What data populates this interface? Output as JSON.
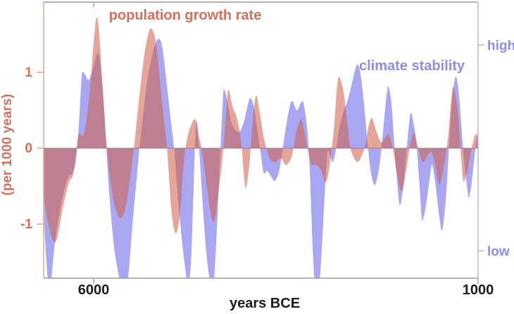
{
  "chart_data": {
    "type": "area",
    "title": "",
    "xlabel": "years BCE",
    "ylabel": "(per 1000 years)",
    "legend_position": "annotated-inline",
    "grid": false,
    "x_domain": [
      6650,
      1000
    ],
    "y_domain": [
      -1.93,
      1.93
    ],
    "x_axis_direction": "years BCE decreasing to the right",
    "x_ticks": [
      {
        "label": "6000",
        "year": 6000
      },
      {
        "label": "1000",
        "year": 1000
      }
    ],
    "y_ticks_left": [
      {
        "label": "1",
        "value": 1
      },
      {
        "label": "0",
        "value": 0
      },
      {
        "label": "-1",
        "value": -1
      }
    ],
    "y_ticks_right": [
      {
        "label": "high",
        "value": 1.36
      },
      {
        "label": "low",
        "value": -1.35
      }
    ],
    "colors": {
      "population_fill": "#d0614a",
      "population_text": "#d4715c",
      "climate_fill": "#6f6ce8",
      "climate_text": "#8f8cef",
      "axis_gray": "#9b9b9b",
      "zero_line": "#b5b5b5",
      "left_spine": "#e4ab9d",
      "right_spine": "#b9b7f3",
      "tick_text_dark": "#1c1c1c"
    },
    "series": [
      {
        "id": "climate",
        "name": "climate stability",
        "color": "#6f6ce8",
        "fill_opacity": 0.6,
        "points": [
          [
            6650,
            -0.85
          ],
          [
            6620,
            -1.4
          ],
          [
            6590,
            -1.78
          ],
          [
            6555,
            -1.75
          ],
          [
            6510,
            -1.3
          ],
          [
            6460,
            -0.95
          ],
          [
            6394,
            -0.6
          ],
          [
            6330,
            -0.38
          ],
          [
            6275,
            -0.33
          ],
          [
            6229,
            -0.15
          ],
          [
            6193,
            0.3
          ],
          [
            6165,
            0.8
          ],
          [
            6147,
            1
          ],
          [
            6110,
            0.97
          ],
          [
            6064,
            0.9
          ],
          [
            6009,
            1.05
          ],
          [
            5963,
            1.22
          ],
          [
            5936,
            1.24
          ],
          [
            5899,
            1
          ],
          [
            5862,
            0.5
          ],
          [
            5835,
            0
          ],
          [
            5789,
            -0.7
          ],
          [
            5734,
            -1.3
          ],
          [
            5679,
            -1.65
          ],
          [
            5642,
            -1.85
          ],
          [
            5587,
            -1.9
          ],
          [
            5541,
            -1.6
          ],
          [
            5495,
            -1
          ],
          [
            5440,
            -0.4
          ],
          [
            5404,
            0
          ],
          [
            5349,
            0.5
          ],
          [
            5294,
            0.95
          ],
          [
            5220,
            1.3
          ],
          [
            5165,
            1.44
          ],
          [
            5110,
            1.35
          ],
          [
            5055,
            0.9
          ],
          [
            5000,
            0.4
          ],
          [
            4954,
            0
          ],
          [
            4908,
            -0.6
          ],
          [
            4853,
            -1.2
          ],
          [
            4807,
            -1.6
          ],
          [
            4771,
            -1.8
          ],
          [
            4734,
            -1.5
          ],
          [
            4706,
            -0.7
          ],
          [
            4679,
            0.1
          ],
          [
            4660,
            0.35
          ],
          [
            4642,
            0.2
          ],
          [
            4615,
            -0.2
          ],
          [
            4578,
            -0.8
          ],
          [
            4532,
            -1.4
          ],
          [
            4486,
            -1.75
          ],
          [
            4440,
            -1.8
          ],
          [
            4404,
            -1.2
          ],
          [
            4367,
            -0.4
          ],
          [
            4349,
            0
          ],
          [
            4321,
            0.6
          ],
          [
            4303,
            0.78
          ],
          [
            4257,
            0.6
          ],
          [
            4211,
            0.35
          ],
          [
            4156,
            0.24
          ],
          [
            4101,
            0.22
          ],
          [
            4046,
            0.35
          ],
          [
            4000,
            0.55
          ],
          [
            3963,
            0.66
          ],
          [
            3917,
            0.55
          ],
          [
            3872,
            0.25
          ],
          [
            3835,
            0
          ],
          [
            3789,
            -0.32
          ],
          [
            3743,
            -0.3
          ],
          [
            3688,
            -0.38
          ],
          [
            3642,
            -0.43
          ],
          [
            3587,
            -0.3
          ],
          [
            3541,
            0
          ],
          [
            3495,
            0.3
          ],
          [
            3450,
            0.55
          ],
          [
            3413,
            0.62
          ],
          [
            3358,
            0.5
          ],
          [
            3303,
            0.6
          ],
          [
            3275,
            0.61
          ],
          [
            3239,
            0.4
          ],
          [
            3202,
            0
          ],
          [
            3174,
            -0.7
          ],
          [
            3147,
            -1.4
          ],
          [
            3119,
            -1.8
          ],
          [
            3073,
            -1.85
          ],
          [
            3037,
            -1.4
          ],
          [
            3000,
            -0.7
          ],
          [
            2963,
            -0.1
          ],
          [
            2945,
            -0.04
          ],
          [
            2918,
            -0.12
          ],
          [
            2890,
            -0.18
          ],
          [
            2853,
            -0.05
          ],
          [
            2817,
            0.2
          ],
          [
            2761,
            0.45
          ],
          [
            2706,
            0.6
          ],
          [
            2642,
            0.85
          ],
          [
            2596,
            1.05
          ],
          [
            2569,
            1.1
          ],
          [
            2532,
            1
          ],
          [
            2486,
            0.6
          ],
          [
            2440,
            0.1
          ],
          [
            2404,
            -0.25
          ],
          [
            2367,
            -0.44
          ],
          [
            2339,
            -0.48
          ],
          [
            2294,
            -0.3
          ],
          [
            2257,
            0
          ],
          [
            2220,
            0.4
          ],
          [
            2184,
            0.75
          ],
          [
            2165,
            0.81
          ],
          [
            2128,
            0.6
          ],
          [
            2092,
            0.1
          ],
          [
            2055,
            -0.4
          ],
          [
            2018,
            -0.75
          ],
          [
            1973,
            -0.5
          ],
          [
            1927,
            0
          ],
          [
            1899,
            0.3
          ],
          [
            1872,
            0.47
          ],
          [
            1835,
            0.3
          ],
          [
            1798,
            0
          ],
          [
            1761,
            -0.5
          ],
          [
            1734,
            -0.9
          ],
          [
            1716,
            -0.94
          ],
          [
            1670,
            -0.7
          ],
          [
            1624,
            -0.35
          ],
          [
            1596,
            -0.22
          ],
          [
            1551,
            -0.5
          ],
          [
            1505,
            -0.9
          ],
          [
            1468,
            -1.08
          ],
          [
            1422,
            -0.7
          ],
          [
            1385,
            -0.1
          ],
          [
            1349,
            0.5
          ],
          [
            1312,
            0.85
          ],
          [
            1284,
            0.94
          ],
          [
            1248,
            0.7
          ],
          [
            1211,
            0.2
          ],
          [
            1174,
            -0.25
          ],
          [
            1138,
            -0.55
          ],
          [
            1119,
            -0.65
          ],
          [
            1083,
            -0.45
          ],
          [
            1046,
            -0.1
          ],
          [
            1000,
            0.28
          ]
        ]
      },
      {
        "id": "population",
        "name": "population growth rate",
        "color": "#d0614a",
        "fill_opacity": 0.56,
        "points": [
          [
            6650,
            -0.62
          ],
          [
            6596,
            -0.97
          ],
          [
            6495,
            -1.24
          ],
          [
            6394,
            -0.75
          ],
          [
            6321,
            -0.45
          ],
          [
            6266,
            -0.35
          ],
          [
            6229,
            -0.05
          ],
          [
            6193,
            0.18
          ],
          [
            6119,
            0.21
          ],
          [
            6046,
            0.8
          ],
          [
            6000,
            1.4
          ],
          [
            5963,
            1.72
          ],
          [
            5927,
            1.5
          ],
          [
            5872,
            0.6
          ],
          [
            5826,
            0
          ],
          [
            5771,
            -0.5
          ],
          [
            5716,
            -0.8
          ],
          [
            5642,
            -0.92
          ],
          [
            5569,
            -0.7
          ],
          [
            5477,
            0
          ],
          [
            5404,
            0.7
          ],
          [
            5330,
            1.3
          ],
          [
            5257,
            1.58
          ],
          [
            5184,
            1.35
          ],
          [
            5110,
            0.6
          ],
          [
            5046,
            0
          ],
          [
            4991,
            -0.8
          ],
          [
            4936,
            -1.12
          ],
          [
            4881,
            -0.9
          ],
          [
            4835,
            -0.3
          ],
          [
            4807,
            0
          ],
          [
            4752,
            0.25
          ],
          [
            4679,
            0.38
          ],
          [
            4633,
            0.15
          ],
          [
            4596,
            0
          ],
          [
            4541,
            -0.4
          ],
          [
            4486,
            -0.8
          ],
          [
            4431,
            -0.96
          ],
          [
            4367,
            -0.5
          ],
          [
            4312,
            0
          ],
          [
            4275,
            0.5
          ],
          [
            4248,
            0.77
          ],
          [
            4193,
            0.55
          ],
          [
            4138,
            0.4
          ],
          [
            4083,
            0.1
          ],
          [
            4046,
            -0.35
          ],
          [
            4018,
            -0.52
          ],
          [
            3973,
            -0.2
          ],
          [
            3936,
            0.3
          ],
          [
            3890,
            0.69
          ],
          [
            3844,
            0.5
          ],
          [
            3798,
            0.2
          ],
          [
            3752,
            0
          ],
          [
            3697,
            -0.15
          ],
          [
            3624,
            -0.18
          ],
          [
            3569,
            -0.13
          ],
          [
            3495,
            -0.22
          ],
          [
            3422,
            -0.1
          ],
          [
            3367,
            0.2
          ],
          [
            3303,
            0.38
          ],
          [
            3257,
            0.2
          ],
          [
            3220,
            0
          ],
          [
            3174,
            -0.2
          ],
          [
            3110,
            -0.22
          ],
          [
            3046,
            -0.28
          ],
          [
            2982,
            -0.45
          ],
          [
            2927,
            -0.2
          ],
          [
            2872,
            0.3
          ],
          [
            2835,
            0.8
          ],
          [
            2807,
            0.94
          ],
          [
            2752,
            0.75
          ],
          [
            2697,
            0.3
          ],
          [
            2661,
            0
          ],
          [
            2569,
            -0.18
          ],
          [
            2477,
            0
          ],
          [
            2431,
            0.25
          ],
          [
            2385,
            0.4
          ],
          [
            2330,
            0.25
          ],
          [
            2257,
            0.08
          ],
          [
            2165,
            0.18
          ],
          [
            2110,
            0
          ],
          [
            2055,
            -0.35
          ],
          [
            1991,
            -0.57
          ],
          [
            1936,
            -0.3
          ],
          [
            1890,
            0
          ],
          [
            1835,
            0.21
          ],
          [
            1789,
            0.05
          ],
          [
            1725,
            -0.18
          ],
          [
            1661,
            -0.1
          ],
          [
            1606,
            -0.05
          ],
          [
            1551,
            -0.25
          ],
          [
            1505,
            -0.48
          ],
          [
            1440,
            -0.2
          ],
          [
            1385,
            0.2
          ],
          [
            1349,
            0.65
          ],
          [
            1321,
            0.81
          ],
          [
            1266,
            0.5
          ],
          [
            1229,
            0
          ],
          [
            1202,
            -0.35
          ],
          [
            1183,
            -0.44
          ],
          [
            1128,
            -0.25
          ],
          [
            1083,
            0
          ],
          [
            1037,
            0.18
          ],
          [
            1000,
            0.15
          ]
        ]
      }
    ]
  }
}
